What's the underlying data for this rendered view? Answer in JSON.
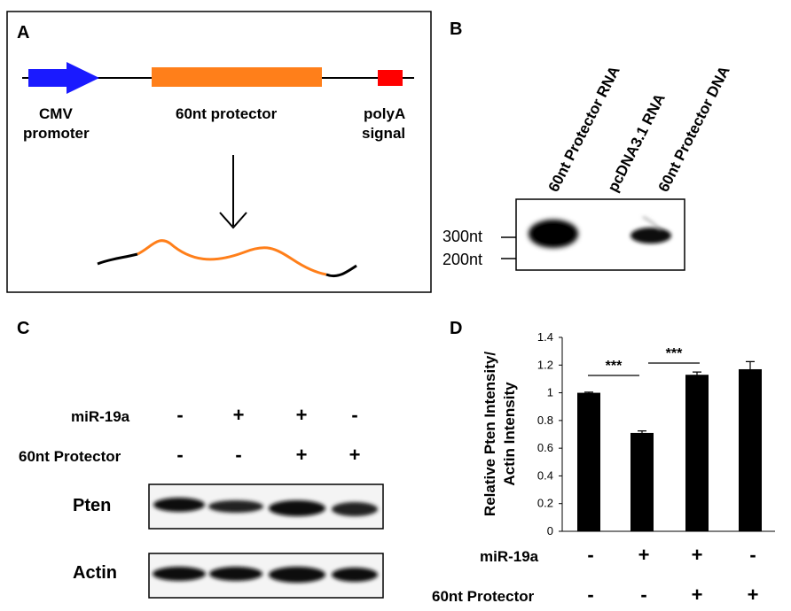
{
  "panels": {
    "a": {
      "letter": "A",
      "promoter_label_1": "CMV",
      "promoter_label_2": "promoter",
      "protector_label": "60nt protector",
      "polya_label_1": "polyA",
      "polya_label_2": "signal",
      "colors": {
        "promoter": "#1a1aff",
        "protector": "#ff7f1a",
        "polya": "#ff0000",
        "transcript": "#ff7f1a"
      }
    },
    "b": {
      "letter": "B",
      "lanes": [
        "60nt Protector RNA",
        "pcDNA3.1 RNA",
        "60nt Protector DNA"
      ],
      "markers": [
        "300nt",
        "200nt"
      ]
    },
    "c": {
      "letter": "C",
      "row1_label": "miR-19a",
      "row2_label": "60nt Protector",
      "row1_signs": [
        "-",
        "+",
        "+",
        "-"
      ],
      "row2_signs": [
        "-",
        "-",
        "+",
        "+"
      ],
      "blot1_label": "Pten",
      "blot2_label": "Actin"
    },
    "d": {
      "letter": "D",
      "row1_label": "miR-19a",
      "row2_label": "60nt Protector",
      "row1_signs": [
        "-",
        "+",
        "+",
        "-"
      ],
      "row2_signs": [
        "-",
        "-",
        "+",
        "+"
      ],
      "significance": [
        "***",
        "***"
      ]
    }
  },
  "chart_data": {
    "type": "bar",
    "ylabel_line1": "Relative Pten Intensity/",
    "ylabel_line2": "Actin Intensity",
    "ylim": [
      0,
      1.4
    ],
    "yticks": [
      "0",
      "0.2",
      "0.4",
      "0.6",
      "0.8",
      "1",
      "1.2",
      "1.4"
    ],
    "values": [
      1.0,
      0.71,
      1.13,
      1.17
    ],
    "errors": [
      0.005,
      0.015,
      0.02,
      0.055
    ],
    "bar_color": "#000000",
    "grid": false
  }
}
